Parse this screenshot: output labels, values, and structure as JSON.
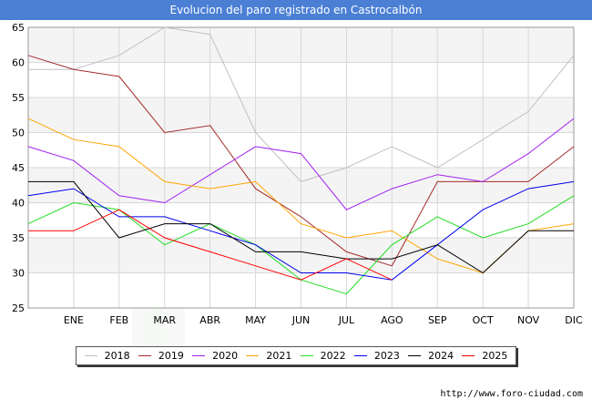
{
  "title": "Evolucion del paro registrado en Castrocalbón",
  "source_text": "http://www.foro-ciudad.com",
  "chart_data": {
    "type": "line",
    "categories": [
      "",
      "ENE",
      "FEB",
      "MAR",
      "ABR",
      "MAY",
      "JUN",
      "JUL",
      "AGO",
      "SEP",
      "OCT",
      "NOV",
      "DIC"
    ],
    "ylim": [
      25,
      65
    ],
    "yticks": [
      25,
      30,
      35,
      40,
      45,
      50,
      55,
      60,
      65
    ],
    "grid": true,
    "legend_position": "bottom",
    "series": [
      {
        "name": "2018",
        "color": "#c0c0c0",
        "values": [
          59,
          59,
          61,
          65,
          64,
          50,
          43,
          45,
          48,
          45,
          49,
          53,
          61
        ]
      },
      {
        "name": "2019",
        "color": "#a52a2a",
        "values": [
          61,
          59,
          58,
          50,
          51,
          42,
          38,
          33,
          31,
          43,
          43,
          43,
          48
        ]
      },
      {
        "name": "2020",
        "color": "#a020f0",
        "values": [
          48,
          46,
          41,
          40,
          44,
          48,
          47,
          39,
          42,
          44,
          43,
          47,
          52
        ]
      },
      {
        "name": "2021",
        "color": "#ffa500",
        "values": [
          52,
          49,
          48,
          43,
          42,
          43,
          37,
          35,
          36,
          32,
          30,
          36,
          37
        ]
      },
      {
        "name": "2022",
        "color": "#22dd22",
        "values": [
          37,
          40,
          39,
          34,
          37,
          34,
          29,
          27,
          34,
          38,
          35,
          37,
          41
        ]
      },
      {
        "name": "2023",
        "color": "#0000ee",
        "values": [
          41,
          42,
          38,
          38,
          36,
          34,
          30,
          30,
          29,
          34,
          39,
          42,
          43
        ]
      },
      {
        "name": "2024",
        "color": "#000000",
        "values": [
          43,
          43,
          35,
          37,
          37,
          33,
          33,
          32,
          32,
          34,
          30,
          36,
          36
        ]
      },
      {
        "name": "2025",
        "color": "#ff0000",
        "values": [
          36,
          36,
          39,
          35,
          33,
          31,
          29,
          32,
          29,
          null,
          null,
          null,
          null
        ]
      }
    ]
  }
}
